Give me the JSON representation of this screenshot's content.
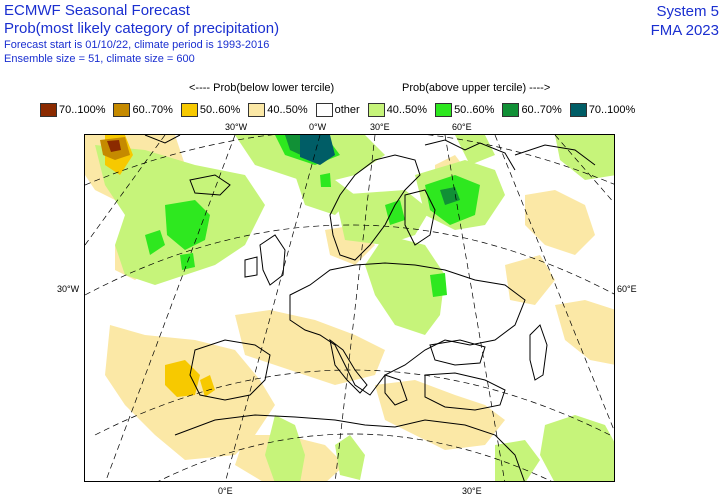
{
  "header": {
    "title": "ECMWF Seasonal Forecast",
    "subtitle": "Prob(most likely category of precipitation)",
    "forecast_line": "Forecast start is 01/10/22, climate period is 1993-2016",
    "ensemble_line": "Ensemble size = 51, climate size = 600"
  },
  "system": {
    "name": "System 5",
    "period": "FMA 2023"
  },
  "tercile_captions": {
    "below": "<---- Prob(below lower tercile)",
    "above": "Prob(above upper tercile) ---->"
  },
  "legend": [
    {
      "label": "70..100%",
      "color": "#8b2a00"
    },
    {
      "label": "60..70%",
      "color": "#c58a00"
    },
    {
      "label": "50..60%",
      "color": "#f7c900"
    },
    {
      "label": "40..50%",
      "color": "#fbe8a6"
    },
    {
      "label": "other",
      "color": "#ffffff"
    },
    {
      "label": "40..50%",
      "color": "#c6f47a"
    },
    {
      "label": "50..60%",
      "color": "#2ee81f"
    },
    {
      "label": "60..70%",
      "color": "#119036"
    },
    {
      "label": "70..100%",
      "color": "#005d66"
    }
  ],
  "map": {
    "lon_labels_top": [
      "30°W",
      "0°W",
      "30°E",
      "60°E"
    ],
    "lon_labels_bottom": [
      "0°E",
      "30°E"
    ],
    "lat_labels": [
      "30°W",
      "60°E"
    ]
  }
}
